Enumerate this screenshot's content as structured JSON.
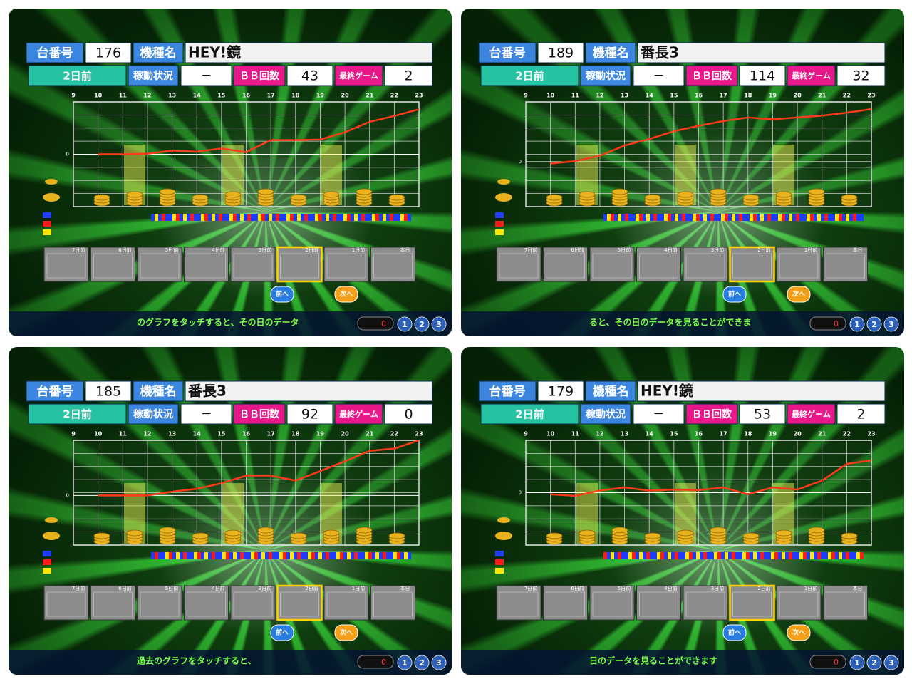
{
  "panels": [
    {
      "board_label": "台番号",
      "board_number": "176",
      "model_label": "機種名",
      "model_name": "HEY!鏡",
      "day": "2日前",
      "status_label": "稼動状況",
      "status_value": "－",
      "bb_label": "ＢＢ回数",
      "bb_count": 43,
      "last_game_label": "最終ゲーム",
      "last_game": 2,
      "hours": [
        9,
        10,
        11,
        12,
        13,
        14,
        15,
        16,
        17,
        18,
        19,
        20,
        21,
        22,
        23
      ],
      "graph": {
        "ylim": [
          -100,
          100
        ],
        "yticks": [
          0
        ],
        "x": [
          10,
          11,
          12,
          13,
          14,
          15,
          16,
          17,
          18,
          19,
          20,
          21,
          22,
          23
        ],
        "values": [
          0,
          0,
          1,
          7,
          5,
          11,
          4,
          27,
          27,
          28,
          42,
          62,
          73,
          86
        ],
        "color": "#ff3a1a"
      },
      "thumbnails": [
        "7日前",
        "6日前",
        "5日前",
        "4日前",
        "3日前",
        "2日前",
        "1日前",
        "本日"
      ],
      "prev": "前へ",
      "next": "次へ",
      "footer": "のグラフをタッチすると、その日のデータ",
      "counter": "0",
      "pages": [
        "1",
        "2",
        "3"
      ]
    },
    {
      "board_label": "台番号",
      "board_number": "189",
      "model_label": "機種名",
      "model_name": "番長3",
      "day": "2日前",
      "status_label": "稼動状況",
      "status_value": "－",
      "bb_label": "ＢＢ回数",
      "bb_count": 114,
      "last_game_label": "最終ゲーム",
      "last_game": 32,
      "hours": [
        9,
        10,
        11,
        12,
        13,
        14,
        15,
        16,
        17,
        18,
        19,
        20,
        21,
        22,
        23
      ],
      "graph": {
        "ylim": [
          -75,
          100
        ],
        "yticks": [
          0
        ],
        "x": [
          10,
          11,
          12,
          13,
          14,
          15,
          16,
          17,
          18,
          19,
          20,
          21,
          22,
          23
        ],
        "values": [
          -3,
          1,
          10,
          27,
          38,
          51,
          60,
          68,
          74,
          71,
          74,
          77,
          82,
          88
        ],
        "color": "#ff3a1a"
      },
      "thumbnails": [
        "7日前",
        "6日前",
        "5日前",
        "4日前",
        "3日前",
        "2日前",
        "1日前",
        "本日"
      ],
      "prev": "前へ",
      "next": "次へ",
      "footer": "ると、その日のデータを見ることができま",
      "counter": "0",
      "pages": [
        "1",
        "2",
        "3"
      ]
    },
    {
      "board_label": "台番号",
      "board_number": "185",
      "model_label": "機種名",
      "model_name": "番長3",
      "day": "2日前",
      "status_label": "稼動状況",
      "status_value": "－",
      "bb_label": "ＢＢ回数",
      "bb_count": 92,
      "last_game_label": "最終ゲーム",
      "last_game": 0,
      "hours": [
        9,
        10,
        11,
        12,
        13,
        14,
        15,
        16,
        17,
        18,
        19,
        20,
        21,
        22,
        23
      ],
      "graph": {
        "ylim": [
          -90,
          100
        ],
        "yticks": [
          0
        ],
        "x": [
          10,
          11,
          12,
          13,
          14,
          15,
          16,
          17,
          18,
          19,
          20,
          21,
          22,
          23
        ],
        "values": [
          0,
          0,
          0,
          7,
          12,
          22,
          36,
          36,
          27,
          44,
          62,
          81,
          85,
          100
        ],
        "color": "#ff3a1a"
      },
      "thumbnails": [
        "7日前",
        "6日前",
        "5日前",
        "4日前",
        "3日前",
        "2日前",
        "1日前",
        "本日"
      ],
      "prev": "前へ",
      "next": "次へ",
      "footer": "過去のグラフをタッチすると、",
      "counter": "0",
      "pages": [
        "1",
        "2",
        "3"
      ]
    },
    {
      "board_label": "台番号",
      "board_number": "179",
      "model_label": "機種名",
      "model_name": "HEY!鏡",
      "day": "2日前",
      "status_label": "稼動状況",
      "status_value": "－",
      "bb_label": "ＢＢ回数",
      "bb_count": 53,
      "last_game_label": "最終ゲーム",
      "last_game": 2,
      "hours": [
        9,
        10,
        11,
        12,
        13,
        14,
        15,
        16,
        17,
        18,
        19,
        20,
        21,
        22,
        23
      ],
      "graph": {
        "ylim": [
          -100,
          100
        ],
        "yticks": [
          0
        ],
        "x": [
          10,
          11,
          12,
          13,
          14,
          15,
          16,
          17,
          18,
          19,
          20,
          21,
          22,
          23
        ],
        "values": [
          -3,
          -6,
          4,
          10,
          4,
          6,
          5,
          10,
          -3,
          10,
          6,
          23,
          55,
          62
        ],
        "color": "#ff3a1a"
      },
      "thumbnails": [
        "7日前",
        "6日前",
        "5日前",
        "4日前",
        "3日前",
        "2日前",
        "1日前",
        "本日"
      ],
      "prev": "前へ",
      "next": "次へ",
      "footer": "日のデータを見ることができます",
      "counter": "0",
      "pages": [
        "1",
        "2",
        "3"
      ]
    }
  ]
}
